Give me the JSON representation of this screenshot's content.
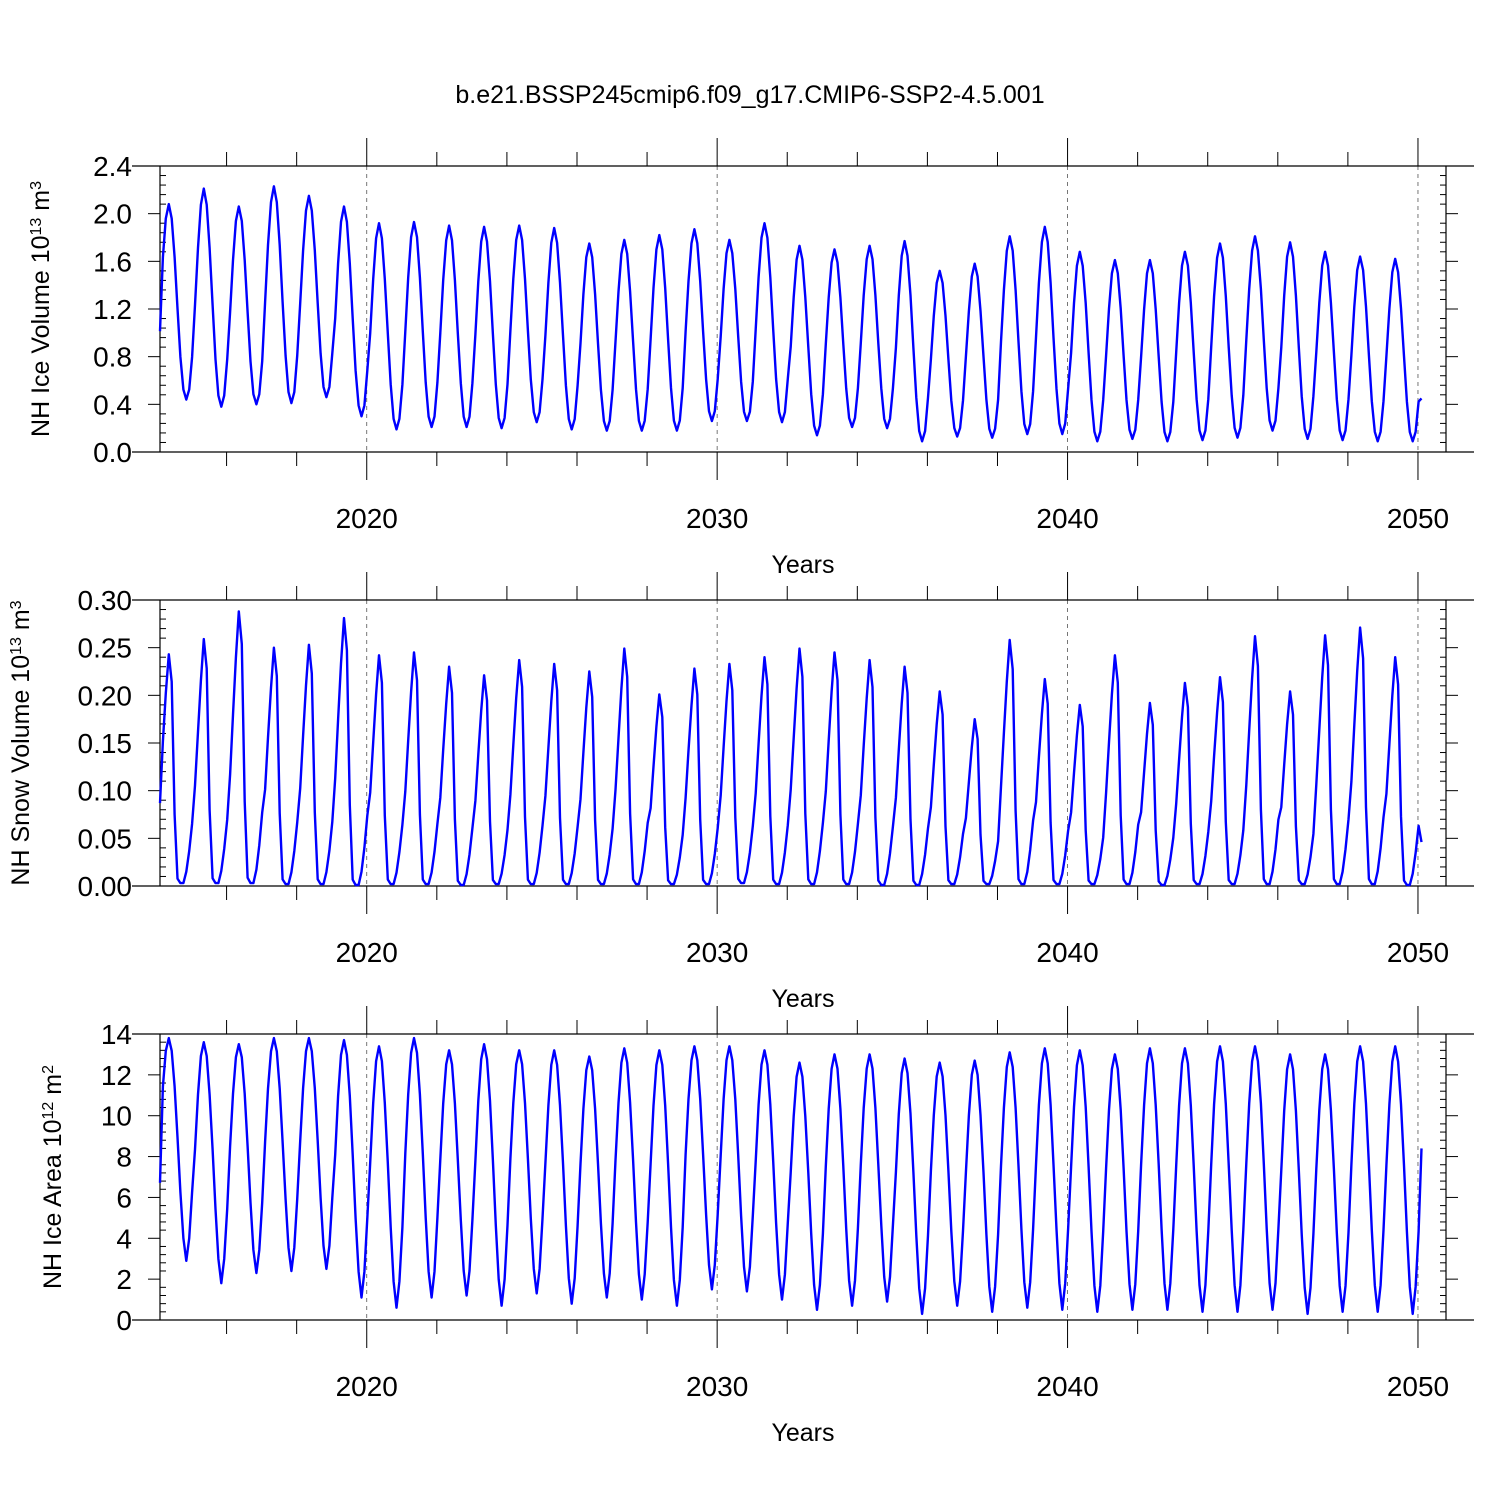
{
  "title": "b.e21.BSSP245cmip6.f09_g17.CMIP6-SSP2-4.5.001",
  "colors": {
    "line": "#0000ff",
    "frame": "#000000",
    "grid": "#555555"
  },
  "chart_data": [
    {
      "type": "line",
      "ylabel_main": "NH Ice Volume 10",
      "ylabel_exp": "13",
      "ylabel_unit": " m",
      "ylabel_unit_exp": "3",
      "xlabel": "Years",
      "xlim": [
        2014.1,
        2050.8
      ],
      "ylim": [
        0,
        2.4
      ],
      "x_ticks": [
        2020,
        2030,
        2040,
        2050
      ],
      "x_tick_labels": [
        "2020",
        "2030",
        "2040",
        "2050"
      ],
      "y_ticks": [
        0,
        0.4,
        0.8,
        1.2,
        1.6,
        2.0,
        2.4
      ],
      "y_tick_labels": [
        "0.0",
        "0.4",
        "0.8",
        "1.2",
        "1.6",
        "2.0",
        "2.4"
      ],
      "grid": "dashed vertical at decades",
      "series": [
        {
          "start": 2014.1,
          "peaks": [
            2.08,
            2.21,
            2.06,
            2.23,
            2.15,
            2.06,
            1.92,
            1.93,
            1.9,
            1.89,
            1.9,
            1.88,
            1.75,
            1.78,
            1.82,
            1.87,
            1.78,
            1.92,
            1.73,
            1.7,
            1.73,
            1.77,
            1.52,
            1.58,
            1.81,
            1.89,
            1.68,
            1.61,
            1.61,
            1.68,
            1.75,
            1.81,
            1.76,
            1.68,
            1.64,
            1.62
          ],
          "troughs": [
            0.44,
            0.38,
            0.4,
            0.41,
            0.46,
            0.3,
            0.19,
            0.21,
            0.21,
            0.2,
            0.25,
            0.19,
            0.18,
            0.18,
            0.18,
            0.26,
            0.26,
            0.25,
            0.14,
            0.21,
            0.2,
            0.09,
            0.13,
            0.12,
            0.15,
            0.15,
            0.09,
            0.11,
            0.09,
            0.1,
            0.12,
            0.18,
            0.11,
            0.1,
            0.09,
            0.09
          ],
          "end_value": 0.45
        }
      ]
    },
    {
      "type": "line",
      "ylabel_main": "NH Snow Volume 10",
      "ylabel_exp": "13",
      "ylabel_unit": " m",
      "ylabel_unit_exp": "3",
      "xlabel": "Years",
      "xlim": [
        2014.1,
        2050.8
      ],
      "ylim": [
        0,
        0.3
      ],
      "x_ticks": [
        2020,
        2030,
        2040,
        2050
      ],
      "x_tick_labels": [
        "2020",
        "2030",
        "2040",
        "2050"
      ],
      "y_ticks": [
        0,
        0.05,
        0.1,
        0.15,
        0.2,
        0.25,
        0.3
      ],
      "y_tick_labels": [
        "0.00",
        "0.05",
        "0.10",
        "0.15",
        "0.20",
        "0.25",
        "0.30"
      ],
      "grid": "dashed vertical at decades",
      "series": [
        {
          "start": 2014.1,
          "peaks": [
            0.243,
            0.259,
            0.288,
            0.25,
            0.253,
            0.281,
            0.242,
            0.245,
            0.23,
            0.221,
            0.237,
            0.233,
            0.225,
            0.249,
            0.201,
            0.228,
            0.233,
            0.24,
            0.249,
            0.245,
            0.237,
            0.23,
            0.204,
            0.175,
            0.258,
            0.217,
            0.19,
            0.242,
            0.192,
            0.213,
            0.219,
            0.262,
            0.204,
            0.263,
            0.271,
            0.24
          ],
          "troughs": [
            0.003,
            0.003,
            0.003,
            0.002,
            0.002,
            0.001,
            0.002,
            0.002,
            0.001,
            0.002,
            0.002,
            0.002,
            0.002,
            0.002,
            0.002,
            0.002,
            0.003,
            0.002,
            0.002,
            0.002,
            0.001,
            0.001,
            0.002,
            0.002,
            0.002,
            0.002,
            0.002,
            0.002,
            0.001,
            0.002,
            0.002,
            0.002,
            0.002,
            0.002,
            0.002,
            0.001
          ],
          "end_value": 0.046
        }
      ]
    },
    {
      "type": "line",
      "ylabel_main": "NH Ice Area 10",
      "ylabel_exp": "12",
      "ylabel_unit": " m",
      "ylabel_unit_exp": "2",
      "xlabel": "Years",
      "xlim": [
        2014.1,
        2050.8
      ],
      "ylim": [
        0,
        14
      ],
      "x_ticks": [
        2020,
        2030,
        2040,
        2050
      ],
      "x_tick_labels": [
        "2020",
        "2030",
        "2040",
        "2050"
      ],
      "y_ticks": [
        0,
        2,
        4,
        6,
        8,
        10,
        12,
        14
      ],
      "y_tick_labels": [
        "0",
        "2",
        "4",
        "6",
        "8",
        "10",
        "12",
        "14"
      ],
      "grid": "dashed vertical at decades",
      "series": [
        {
          "start": 2014.1,
          "peaks": [
            13.8,
            13.6,
            13.5,
            13.8,
            13.8,
            13.7,
            13.4,
            13.8,
            13.2,
            13.5,
            13.2,
            13.2,
            12.9,
            13.3,
            13.2,
            13.4,
            13.4,
            13.2,
            12.6,
            13.0,
            13.0,
            12.8,
            12.6,
            12.7,
            13.1,
            13.3,
            13.2,
            13.0,
            13.3,
            13.3,
            13.4,
            13.4,
            13.0,
            13.0,
            13.4,
            13.4
          ],
          "troughs": [
            2.9,
            1.8,
            2.3,
            2.4,
            2.5,
            1.1,
            0.6,
            1.1,
            1.2,
            0.7,
            1.3,
            0.8,
            1.1,
            1.0,
            0.7,
            1.5,
            1.4,
            1.0,
            0.5,
            0.7,
            0.9,
            0.3,
            0.7,
            0.4,
            0.6,
            0.5,
            0.4,
            0.5,
            0.5,
            0.4,
            0.4,
            0.5,
            0.3,
            0.4,
            0.4,
            0.3
          ],
          "end_value": 8.4
        }
      ]
    }
  ]
}
